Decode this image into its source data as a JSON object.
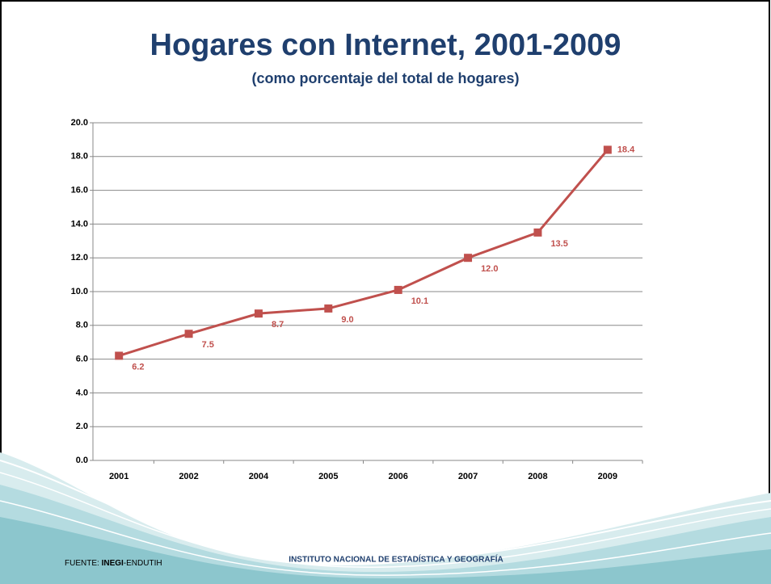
{
  "chart_data": {
    "type": "line",
    "title": "Hogares con Internet, 2001-2009",
    "subtitle": "(como porcentaje del total de hogares)",
    "categories": [
      "2001",
      "2002",
      "2004",
      "2005",
      "2006",
      "2007",
      "2008",
      "2009"
    ],
    "values": [
      6.2,
      7.5,
      8.7,
      9.0,
      10.1,
      12.0,
      13.5,
      18.4
    ],
    "value_labels": [
      "6.2",
      "7.5",
      "8.7",
      "9.0",
      "10.1",
      "12.0",
      "13.5",
      "18.4"
    ],
    "color": "#c0504d",
    "ylim": [
      0,
      20
    ],
    "yticks": [
      {
        "value": 0,
        "label": "0.0"
      },
      {
        "value": 2,
        "label": "2.0"
      },
      {
        "value": 4,
        "label": "4.0"
      },
      {
        "value": 6,
        "label": "6.0"
      },
      {
        "value": 8,
        "label": "8.0"
      },
      {
        "value": 10,
        "label": "10.0"
      },
      {
        "value": 12,
        "label": "12.0"
      },
      {
        "value": 14,
        "label": "14.0"
      },
      {
        "value": 16,
        "label": "16.0"
      },
      {
        "value": 18,
        "label": "18.0"
      },
      {
        "value": 20,
        "label": "20.0"
      }
    ],
    "grid": true
  },
  "footer": {
    "source_label": "FUENTE:",
    "source_org": "INEGI",
    "source_rest": "-ENDUTIH",
    "institute": "INSTITUTO NACIONAL DE ESTADÍSTICA Y GEOGRAFÍA"
  }
}
